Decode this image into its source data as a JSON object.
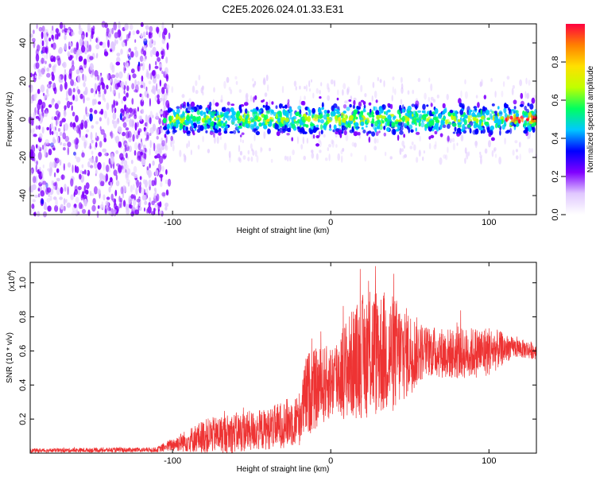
{
  "title": "C2E5.2026.024.01.33.E31",
  "chart_data": [
    {
      "type": "heatmap",
      "name": "spectrogram",
      "xlabel": "Height of straight line (km)",
      "ylabel": "Frequency (Hz)",
      "xlim": [
        -190,
        130
      ],
      "ylim": [
        -50,
        50
      ],
      "xticks": [
        -100,
        0,
        100
      ],
      "yticks": [
        -40,
        -20,
        0,
        20,
        40
      ],
      "noise_region_x": [
        -190,
        -105
      ],
      "signal_band_center_hz": 0,
      "signal_band_halfwidth_hz": 8,
      "colorbar": {
        "label": "Normalized spectral amplitude",
        "range": [
          0.0,
          1.0
        ],
        "ticks": [
          "0.0",
          "0.2",
          "0.4",
          "0.6",
          "0.8"
        ],
        "colors": [
          "#ffffff",
          "#e0c8ff",
          "#8000ff",
          "#0000ff",
          "#00c8ff",
          "#00ff60",
          "#c0ff00",
          "#ffe000",
          "#ff8000",
          "#ff0040"
        ]
      }
    },
    {
      "type": "line",
      "name": "snr",
      "xlabel": "Height of straight line (km)",
      "ylabel": "SNR (10 * v/v)",
      "multiplier_label": "(x10",
      "multiplier_exp": "4",
      "xlim": [
        -190,
        130
      ],
      "ylim": [
        0,
        1.12
      ],
      "xticks": [
        -100,
        0,
        100
      ],
      "yticks": [
        "0.2",
        "0.4",
        "0.6",
        "0.8",
        "1.0"
      ],
      "color": "#ee3333",
      "envelope": [
        {
          "x": -190,
          "mean": 0.015,
          "amp": 0.012
        },
        {
          "x": -110,
          "mean": 0.02,
          "amp": 0.015
        },
        {
          "x": -100,
          "mean": 0.05,
          "amp": 0.04
        },
        {
          "x": -80,
          "mean": 0.1,
          "amp": 0.1
        },
        {
          "x": -60,
          "mean": 0.12,
          "amp": 0.12
        },
        {
          "x": -40,
          "mean": 0.14,
          "amp": 0.12
        },
        {
          "x": -20,
          "mean": 0.2,
          "amp": 0.16
        },
        {
          "x": -15,
          "mean": 0.35,
          "amp": 0.25
        },
        {
          "x": 0,
          "mean": 0.42,
          "amp": 0.22
        },
        {
          "x": 10,
          "mean": 0.5,
          "amp": 0.3
        },
        {
          "x": 25,
          "mean": 0.6,
          "amp": 0.4
        },
        {
          "x": 40,
          "mean": 0.58,
          "amp": 0.35
        },
        {
          "x": 60,
          "mean": 0.6,
          "amp": 0.15
        },
        {
          "x": 80,
          "mean": 0.58,
          "amp": 0.15
        },
        {
          "x": 100,
          "mean": 0.6,
          "amp": 0.15
        },
        {
          "x": 115,
          "mean": 0.62,
          "amp": 0.06
        },
        {
          "x": 130,
          "mean": 0.6,
          "amp": 0.05
        }
      ]
    }
  ]
}
